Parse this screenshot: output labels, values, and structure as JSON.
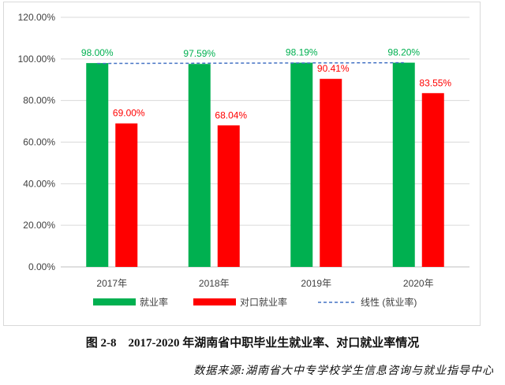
{
  "chart_data": {
    "type": "bar",
    "categories": [
      "2017年",
      "2018年",
      "2019年",
      "2020年"
    ],
    "series": [
      {
        "name": "就业率",
        "values": [
          98.0,
          97.59,
          98.19,
          98.2
        ],
        "color": "#00b050",
        "labels": [
          "98.00%",
          "97.59%",
          "98.19%",
          "98.20%"
        ],
        "label_color": "#00b050"
      },
      {
        "name": "对口就业率",
        "values": [
          69.0,
          68.04,
          90.41,
          83.55
        ],
        "color": "#ff0000",
        "labels": [
          "69.00%",
          "68.04%",
          "90.41%",
          "83.55%"
        ],
        "label_color": "#ff0000"
      }
    ],
    "trendline": {
      "name": "线性 (就业率)",
      "color": "#4472c4",
      "style": "dashed"
    },
    "ylim": [
      0,
      120
    ],
    "yticks": [
      "0.00%",
      "20.00%",
      "40.00%",
      "60.00%",
      "80.00%",
      "100.00%",
      "120.00%"
    ],
    "grid": true,
    "legend_position": "bottom"
  },
  "caption": "图 2-8　2017-2020 年湖南省中职毕业生就业率、对口就业率情况",
  "source": "数据来源:湖南省大中专学校学生信息咨询与就业指导中心"
}
